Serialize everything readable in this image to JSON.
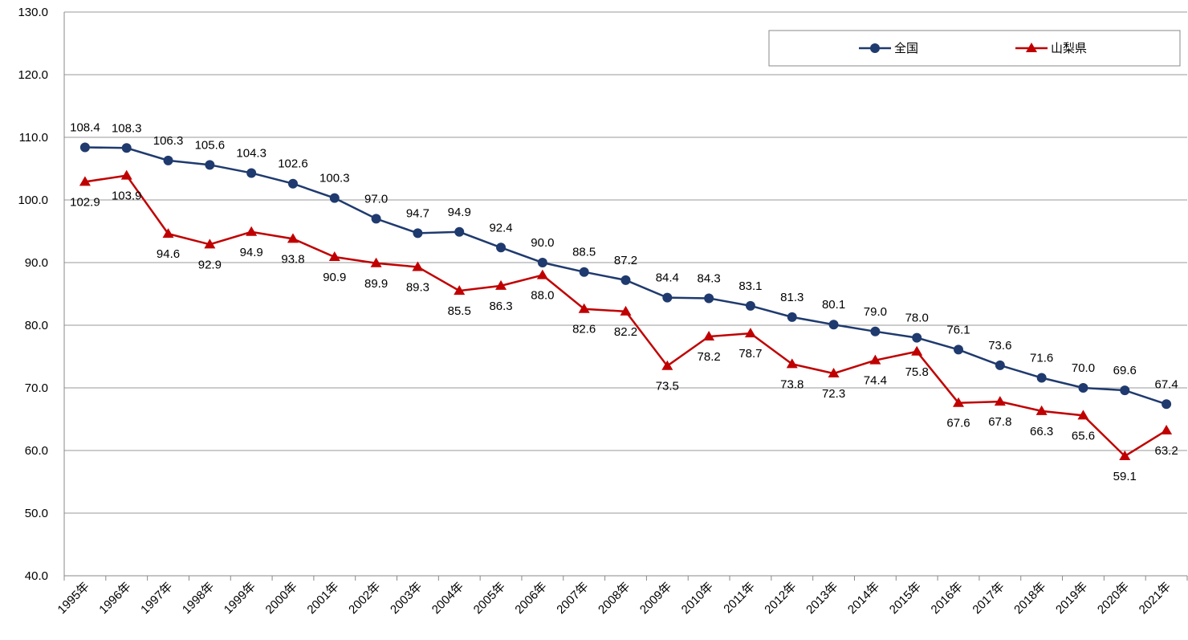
{
  "chart_data": {
    "type": "line",
    "categories": [
      "1995年",
      "1996年",
      "1997年",
      "1998年",
      "1999年",
      "2000年",
      "2001年",
      "2002年",
      "2003年",
      "2004年",
      "2005年",
      "2006年",
      "2007年",
      "2008年",
      "2009年",
      "2010年",
      "2011年",
      "2012年",
      "2013年",
      "2014年",
      "2015年",
      "2016年",
      "2017年",
      "2018年",
      "2019年",
      "2020年",
      "2021年"
    ],
    "series": [
      {
        "name": "全国",
        "color": "#1f3a6e",
        "marker": "circle",
        "values": [
          108.4,
          108.3,
          106.3,
          105.6,
          104.3,
          102.6,
          100.3,
          97.0,
          94.7,
          94.9,
          92.4,
          90.0,
          88.5,
          87.2,
          84.4,
          84.3,
          83.1,
          81.3,
          80.1,
          79.0,
          78.0,
          76.1,
          73.6,
          71.6,
          70.0,
          69.6,
          67.4
        ],
        "value_labels": [
          "108.4",
          "108.3",
          "106.3",
          "105.6",
          "104.3",
          "102.6",
          "100.3",
          "97.0",
          "94.7",
          "94.9",
          "92.4",
          "90.0",
          "88.5",
          "87.2",
          "84.4",
          "84.3",
          "83.1",
          "81.3",
          "80.1",
          "79.0",
          "78.0",
          "76.1",
          "73.6",
          "71.6",
          "70.0",
          "69.6",
          "67.4"
        ]
      },
      {
        "name": "山梨県",
        "color": "#c00000",
        "marker": "triangle",
        "values": [
          102.9,
          103.9,
          94.6,
          92.9,
          94.9,
          93.8,
          90.9,
          89.9,
          89.3,
          85.5,
          86.3,
          88.0,
          82.6,
          82.2,
          73.5,
          78.2,
          78.7,
          73.8,
          72.3,
          74.4,
          75.8,
          67.6,
          67.8,
          66.3,
          65.6,
          59.1,
          63.2
        ],
        "value_labels": [
          "102.9",
          "103.9",
          "94.6",
          "92.9",
          "94.9",
          "93.8",
          "90.9",
          "89.9",
          "89.3",
          "85.5",
          "86.3",
          "88.0",
          "82.6",
          "82.2",
          "73.5",
          "78.2",
          "78.7",
          "73.8",
          "72.3",
          "74.4",
          "75.8",
          "67.6",
          "67.8",
          "66.3",
          "65.6",
          "59.1",
          "63.2"
        ]
      }
    ],
    "ylim": [
      40,
      130
    ],
    "yticks": [
      {
        "value": 40,
        "label": "40.0"
      },
      {
        "value": 50,
        "label": "50.0"
      },
      {
        "value": 60,
        "label": "60.0"
      },
      {
        "value": 70,
        "label": "70.0"
      },
      {
        "value": 80,
        "label": "80.0"
      },
      {
        "value": 90,
        "label": "90.0"
      },
      {
        "value": 100,
        "label": "100.0"
      },
      {
        "value": 110,
        "label": "110.0"
      },
      {
        "value": 120,
        "label": "120.0"
      },
      {
        "value": 130,
        "label": "130.0"
      }
    ],
    "grid": true,
    "legend": "top-right"
  }
}
